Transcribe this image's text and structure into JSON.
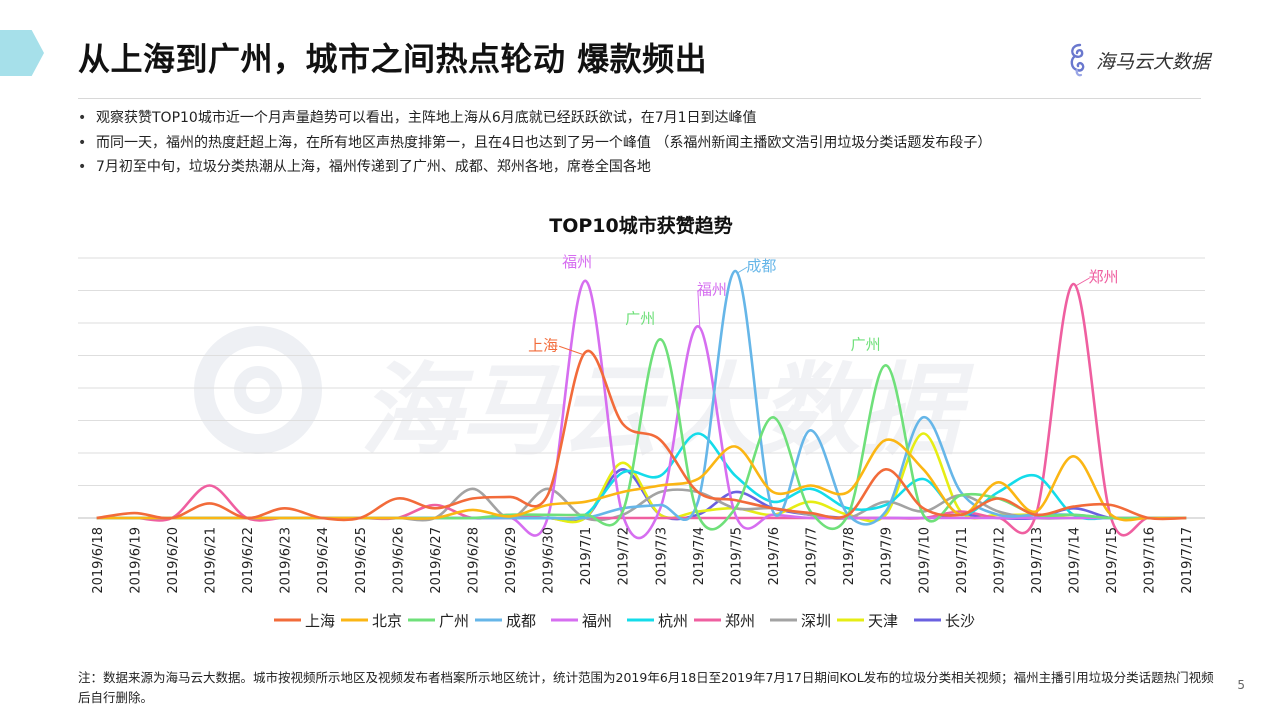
{
  "page": {
    "title": "从上海到广州，城市之间热点轮动 爆款频出",
    "logo_text": "海马云大数据",
    "watermark_text": "海马云大数据",
    "bullets": [
      "观察获赞TOP10城市近一个月声量趋势可以看出，主阵地上海从6月底就已经跃跃欲试，在7月1日到达峰值",
      "而同一天，福州的热度赶超上海，在所有地区声热度排第一，且在4日也达到了另一个峰值 （系福州新闻主播欧文浩引用垃圾分类话题发布段子）",
      "7月初至中旬，垃圾分类热潮从上海，福州传递到了广州、成都、郑州各地，席卷全国各地"
    ],
    "footnote": "注：数据来源为海马云大数据。城市按视频所示地区及视频发布者档案所示地区统计，统计范围为2019年6月18日至2019年7月17日期间KOL发布的垃圾分类相关视频；福州主播引用垃圾分类话题热门视频后自行删除。",
    "page_number": "5",
    "bullet_mark": "•",
    "colors": {
      "accent_tab": "#a6e0ea",
      "logo": "#6a78ce"
    }
  },
  "chart_data": {
    "type": "line",
    "title": "TOP10城市获赞趋势",
    "xlabel": "",
    "ylabel": "",
    "ylim": [
      0,
      8
    ],
    "grid": true,
    "y_tick_labels_shown": false,
    "legend_position": "bottom",
    "smooth": true,
    "categories": [
      "2019/6/18",
      "2019/6/19",
      "2019/6/20",
      "2019/6/21",
      "2019/6/22",
      "2019/6/23",
      "2019/6/24",
      "2019/6/25",
      "2019/6/26",
      "2019/6/27",
      "2019/6/28",
      "2019/6/29",
      "2019/6/30",
      "2019/7/1",
      "2019/7/2",
      "2019/7/3",
      "2019/7/4",
      "2019/7/5",
      "2019/7/6",
      "2019/7/7",
      "2019/7/8",
      "2019/7/9",
      "2019/7/10",
      "2019/7/11",
      "2019/7/12",
      "2019/7/13",
      "2019/7/14",
      "2019/7/15",
      "2019/7/16",
      "2019/7/17"
    ],
    "series": [
      {
        "name": "上海",
        "color": "#f26b3a",
        "values": [
          0,
          0.15,
          0,
          0.45,
          0,
          0.3,
          0,
          0,
          0.6,
          0.3,
          0.6,
          0.65,
          0.7,
          5.1,
          2.9,
          2.4,
          0.8,
          0.55,
          0.3,
          0.15,
          0.1,
          1.5,
          0.3,
          0.1,
          0.6,
          0.1,
          0.35,
          0.4,
          0,
          0
        ]
      },
      {
        "name": "北京",
        "color": "#fbb614",
        "values": [
          0,
          0,
          0,
          0,
          0,
          0,
          0,
          0,
          0,
          0,
          0.25,
          0.05,
          0.4,
          0.5,
          0.8,
          1.0,
          1.2,
          2.2,
          0.8,
          1.0,
          0.8,
          2.4,
          1.5,
          0.1,
          1.1,
          0.2,
          1.9,
          0.1,
          0,
          0
        ]
      },
      {
        "name": "广州",
        "color": "#6fe07a",
        "values": [
          0,
          0,
          0,
          0,
          0,
          0,
          0,
          0,
          0,
          0,
          0,
          0.1,
          0.1,
          0.1,
          0.2,
          5.5,
          0.1,
          0.3,
          3.1,
          0.2,
          0.1,
          4.7,
          0.1,
          0.7,
          0.6,
          0.1,
          0.1,
          0,
          0,
          0
        ]
      },
      {
        "name": "成都",
        "color": "#66b6e8",
        "values": [
          0,
          0,
          0,
          0,
          0,
          0,
          0,
          0,
          0,
          0,
          0,
          0,
          0,
          0,
          0.3,
          0.4,
          0.5,
          7.6,
          0.2,
          2.7,
          0.1,
          0.2,
          3.1,
          0.8,
          0.1,
          0.1,
          0.1,
          0,
          0,
          0
        ]
      },
      {
        "name": "福州",
        "color": "#d66ef0",
        "values": [
          0,
          0,
          0,
          0,
          0,
          0,
          0,
          0,
          0,
          0,
          0,
          0,
          0,
          7.3,
          0.1,
          0.3,
          5.9,
          0.1,
          0.1,
          0,
          0,
          0,
          0,
          0,
          0,
          0,
          0,
          0,
          0,
          0
        ]
      },
      {
        "name": "杭州",
        "color": "#14dcea",
        "values": [
          0,
          0,
          0,
          0,
          0,
          0,
          0,
          0,
          0,
          0,
          0,
          0,
          0,
          0.1,
          1.4,
          1.3,
          2.6,
          1.3,
          0.5,
          0.9,
          0.3,
          0.4,
          1.2,
          0.1,
          0.8,
          1.3,
          0.1,
          0,
          0,
          0
        ]
      },
      {
        "name": "郑州",
        "color": "#ef5fa0",
        "values": [
          0,
          0,
          0,
          1.0,
          0,
          0,
          0,
          0,
          0,
          0.4,
          0,
          0.1,
          0,
          0,
          0,
          0,
          0,
          0,
          0,
          0,
          0,
          0,
          0,
          0.2,
          0,
          0.1,
          7.2,
          0,
          0,
          0
        ]
      },
      {
        "name": "深圳",
        "color": "#a3a3a3",
        "values": [
          0,
          0,
          0,
          0,
          0,
          0,
          0,
          0,
          0,
          0,
          0.9,
          0,
          0.9,
          0,
          0.1,
          0.8,
          0.8,
          0.3,
          0.3,
          0.1,
          0,
          0.5,
          0.2,
          0.7,
          0.2,
          0,
          0,
          0,
          0,
          0
        ]
      },
      {
        "name": "天津",
        "color": "#e6ed14",
        "values": [
          0,
          0,
          0,
          0,
          0,
          0,
          0,
          0,
          0,
          0,
          0,
          0,
          0,
          0,
          1.7,
          0.1,
          0.2,
          0.3,
          0.1,
          0.5,
          0.1,
          0.1,
          2.6,
          0.2,
          0.1,
          0.1,
          0,
          0,
          0,
          0
        ]
      },
      {
        "name": "长沙",
        "color": "#6a60e0",
        "values": [
          0,
          0,
          0,
          0,
          0,
          0,
          0,
          0,
          0,
          0,
          0,
          0,
          0,
          0,
          1.5,
          0.1,
          0.1,
          0.8,
          0.3,
          0.1,
          0,
          0,
          0,
          0.1,
          0,
          0,
          0.3,
          0,
          0,
          0
        ]
      }
    ],
    "annotations": [
      {
        "text": "福州",
        "series": "福州",
        "category": "2019/7/1",
        "color": "#d66ef0"
      },
      {
        "text": "上海",
        "series": "上海",
        "category": "2019/7/1",
        "color": "#f26b3a"
      },
      {
        "text": "广州",
        "series": "广州",
        "category": "2019/7/3",
        "color": "#6fe07a"
      },
      {
        "text": "福州",
        "series": "福州",
        "category": "2019/7/4",
        "color": "#d66ef0"
      },
      {
        "text": "成都",
        "series": "成都",
        "category": "2019/7/5",
        "color": "#66b6e8"
      },
      {
        "text": "广州",
        "series": "广州",
        "category": "2019/7/9",
        "color": "#6fe07a"
      },
      {
        "text": "郑州",
        "series": "郑州",
        "category": "2019/7/14",
        "color": "#ef5fa0"
      }
    ]
  }
}
